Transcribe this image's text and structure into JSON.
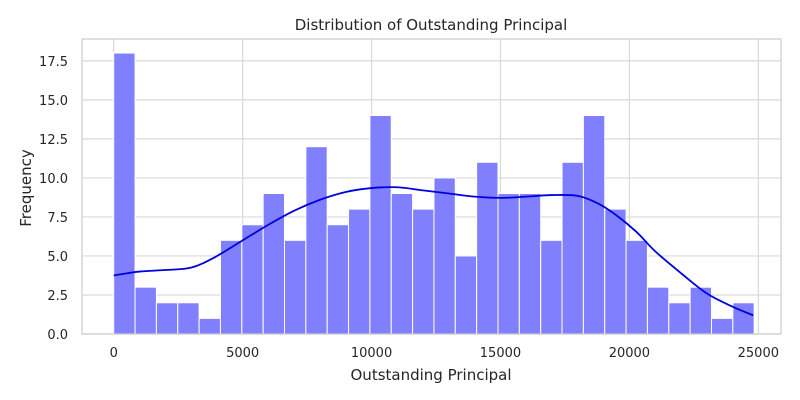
{
  "chart_data": {
    "type": "bar",
    "title": "Distribution of Outstanding Principal",
    "xlabel": "Outstanding Principal",
    "ylabel": "Frequency",
    "xlim": [
      -1230,
      25880
    ],
    "ylim": [
      0,
      18.9
    ],
    "xticks": [
      0,
      5000,
      10000,
      15000,
      20000,
      25000
    ],
    "xtick_labels": [
      "0",
      "5000",
      "10000",
      "15000",
      "20000",
      "25000"
    ],
    "yticks": [
      0,
      2.5,
      5,
      7.5,
      10,
      12.5,
      15,
      17.5
    ],
    "ytick_labels": [
      "0.0",
      "2.5",
      "5.0",
      "7.5",
      "10.0",
      "12.5",
      "15.0",
      "17.5"
    ],
    "grid": true,
    "bar_color": "#8080ff",
    "bar_edge_color": "#ffffff",
    "kde_color": "#0000dd",
    "bins": {
      "start": 0,
      "width": 828,
      "counts": [
        18,
        3,
        2,
        2,
        1,
        6,
        7,
        9,
        6,
        12,
        7,
        8,
        14,
        9,
        8,
        10,
        5,
        11,
        9,
        9,
        6,
        11,
        14,
        8,
        6,
        3,
        2,
        3,
        1,
        2
      ]
    },
    "kde": {
      "x": [
        0,
        1000,
        2000,
        3000,
        3900,
        5000,
        6000,
        7000,
        8000,
        9000,
        10000,
        11000,
        12000,
        13000,
        14000,
        15000,
        16000,
        17000,
        18000,
        18800,
        19500,
        20300,
        21000,
        22000,
        23000,
        24000,
        24800
      ],
      "y": [
        3.75,
        4.0,
        4.1,
        4.25,
        4.9,
        6.0,
        7.0,
        7.9,
        8.6,
        9.1,
        9.35,
        9.4,
        9.2,
        9.0,
        8.8,
        8.72,
        8.8,
        8.9,
        8.85,
        8.35,
        7.6,
        6.5,
        5.3,
        3.9,
        2.6,
        1.75,
        1.2
      ]
    }
  }
}
